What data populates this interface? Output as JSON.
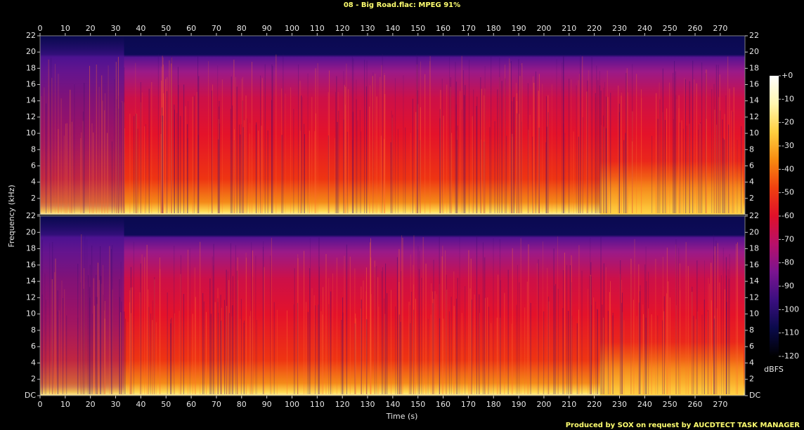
{
  "chart_data": {
    "type": "spectrogram",
    "title": "08 - Big Road.flac: MPEG 91%",
    "xlabel": "Time (s)",
    "ylabel": "Frequency (kHz)",
    "xlim": [
      0,
      279.8
    ],
    "xticks": [
      0,
      10,
      20,
      30,
      40,
      50,
      60,
      70,
      80,
      90,
      100,
      110,
      120,
      130,
      140,
      150,
      160,
      170,
      180,
      190,
      200,
      210,
      220,
      230,
      240,
      250,
      260,
      270
    ],
    "ylim": [
      0,
      22
    ],
    "yticks": [
      {
        "value": 0,
        "label": "DC"
      },
      2,
      4,
      6,
      8,
      10,
      12,
      14,
      16,
      18,
      20,
      22
    ],
    "zlim": [
      -120,
      0
    ],
    "zticks": [
      {
        "value": 0,
        "label": "+0"
      },
      -10,
      -20,
      -30,
      -40,
      -50,
      -60,
      -70,
      -80,
      -90,
      -100,
      -110,
      -120
    ],
    "zlabel": "dBFS",
    "colormap": [
      "#000000",
      "#0a0a4a",
      "#3a0f80",
      "#7a1490",
      "#b8106a",
      "#e0102a",
      "#f04010",
      "#f88a10",
      "#ffd040",
      "#fff8b0",
      "#ffffff"
    ],
    "footer": "Produced by SOX on request by AUCDTECT TASK MANAGER"
  }
}
